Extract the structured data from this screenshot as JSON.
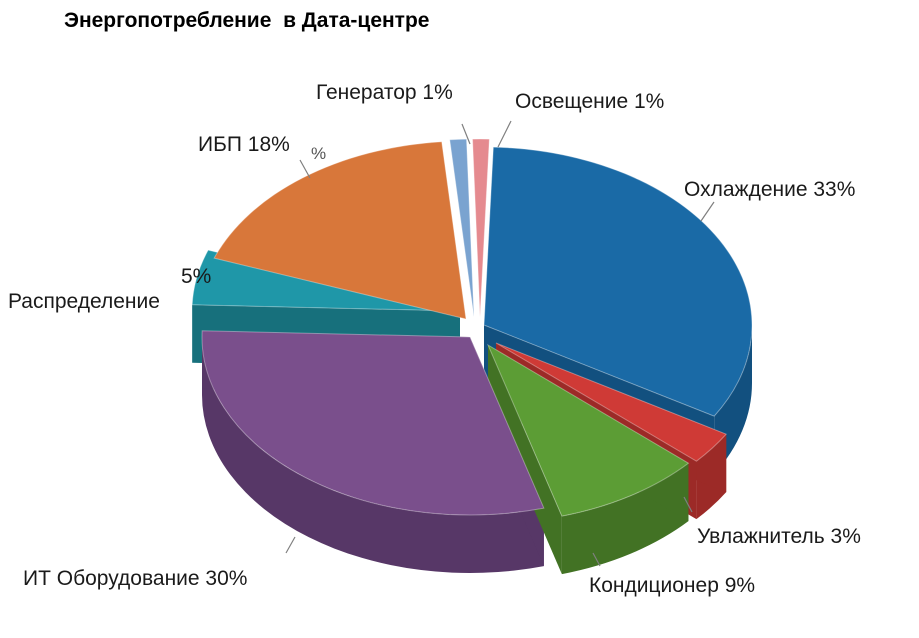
{
  "chart_data": {
    "type": "pie",
    "title": "Энергопотребление  в Дата-центре",
    "slices": [
      {
        "label": "Охлаждение 33%",
        "value": 33,
        "color": "#1a6aa6",
        "side": "#12507f"
      },
      {
        "label": "Увлажнитель 3%",
        "value": 3,
        "color": "#cf3a36",
        "side": "#9c2a27"
      },
      {
        "label": "Кондиционер 9%",
        "value": 9,
        "color": "#5c9d35",
        "side": "#427224"
      },
      {
        "label": "ИТ Оборудование 30%",
        "value": 30,
        "color": "#7a4f8c",
        "side": "#573767"
      },
      {
        "label": "5%",
        "value": 5,
        "color": "#1f97a8",
        "side": "#17707c"
      },
      {
        "label": "Распределение",
        "value": null,
        "color": null,
        "side": null
      },
      {
        "label": "ИБП 18%",
        "value": 18,
        "color": "#d8773a",
        "side": "#a3592a"
      },
      {
        "label": "Генератор 1%",
        "value": 1,
        "color": "#7aa3d0",
        "side": "#5a7ea8"
      },
      {
        "label": "Освещение 1%",
        "value": 1,
        "color": "#e58a8f",
        "side": "#b5686c"
      }
    ],
    "stray_text": "%"
  }
}
